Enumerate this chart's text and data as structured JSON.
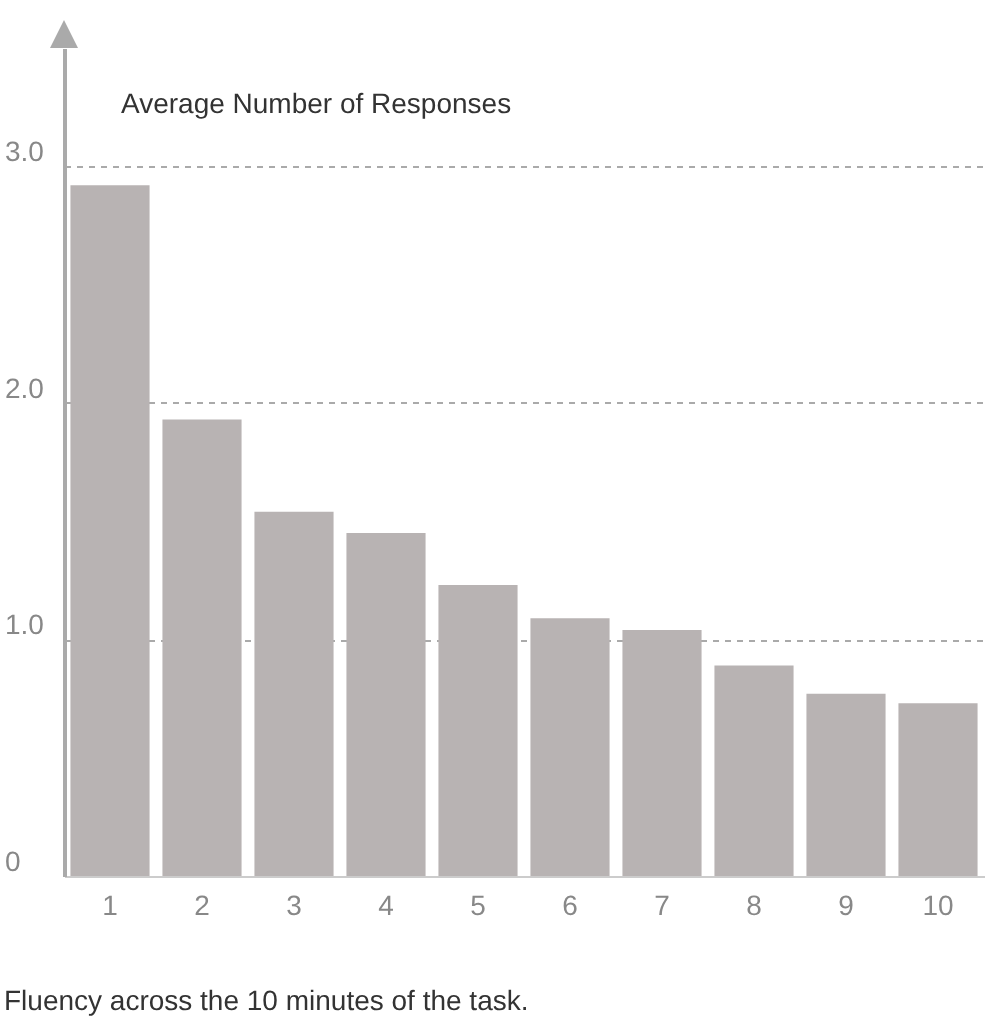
{
  "chart_data": {
    "type": "bar",
    "ylabel": "Average Number of Responses",
    "annotations": [
      "Fluency across the 10 minutes of the task."
    ],
    "categories": [
      "1",
      "2",
      "3",
      "4",
      "5",
      "6",
      "7",
      "8",
      "9",
      "10"
    ],
    "values": [
      2.92,
      1.93,
      1.54,
      1.45,
      1.23,
      1.09,
      1.04,
      0.89,
      0.77,
      0.73
    ],
    "color": "#b8b3b3",
    "ylim": [
      0,
      3.5
    ],
    "yticks": [
      {
        "value": 0,
        "label": "0"
      },
      {
        "value": 1,
        "label": "1.0"
      },
      {
        "value": 2,
        "label": "2.0"
      },
      {
        "value": 3,
        "label": "3.0"
      }
    ],
    "grid": "y",
    "line_style": "dashed"
  }
}
